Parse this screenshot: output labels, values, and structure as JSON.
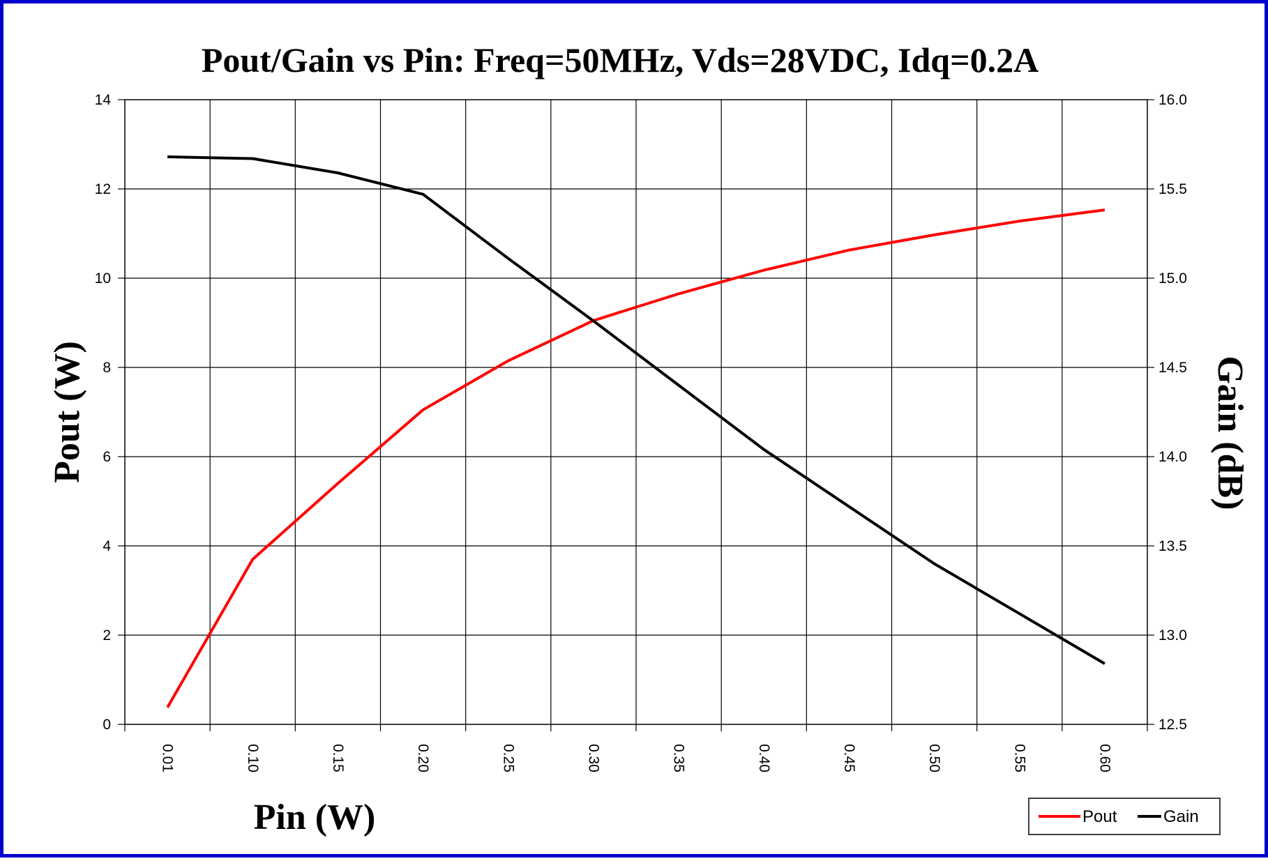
{
  "chart_data": {
    "type": "line",
    "title": "Pout/Gain vs Pin: Freq=50MHz, Vds=28VDC, Idq=0.2A",
    "xlabel": "Pin (W)",
    "ylabel_left": "Pout (W)",
    "ylabel_right": "Gain (dB)",
    "categories": [
      "0.01",
      "0.10",
      "0.15",
      "0.20",
      "0.25",
      "0.30",
      "0.35",
      "0.40",
      "0.45",
      "0.50",
      "0.55",
      "0.60"
    ],
    "y_left": {
      "min": 0,
      "max": 14,
      "step": 2,
      "ticks": [
        "0",
        "2",
        "4",
        "6",
        "8",
        "10",
        "12",
        "14"
      ]
    },
    "y_right": {
      "min": 12.5,
      "max": 16.0,
      "step": 0.5,
      "ticks": [
        "12.5",
        "13.0",
        "13.5",
        "14.0",
        "14.5",
        "15.0",
        "15.5",
        "16.0"
      ]
    },
    "grid": true,
    "legend_position": "bottom-right",
    "series": [
      {
        "name": "Pout",
        "axis": "left",
        "color": "#ff0000",
        "values": [
          0.38,
          3.7,
          5.4,
          7.05,
          8.15,
          9.05,
          9.65,
          10.18,
          10.63,
          10.97,
          11.28,
          11.53
        ]
      },
      {
        "name": "Gain",
        "axis": "right",
        "color": "#000000",
        "values": [
          15.68,
          15.67,
          15.59,
          15.47,
          15.11,
          14.76,
          14.4,
          14.04,
          13.72,
          13.4,
          13.12,
          12.84
        ]
      }
    ]
  }
}
